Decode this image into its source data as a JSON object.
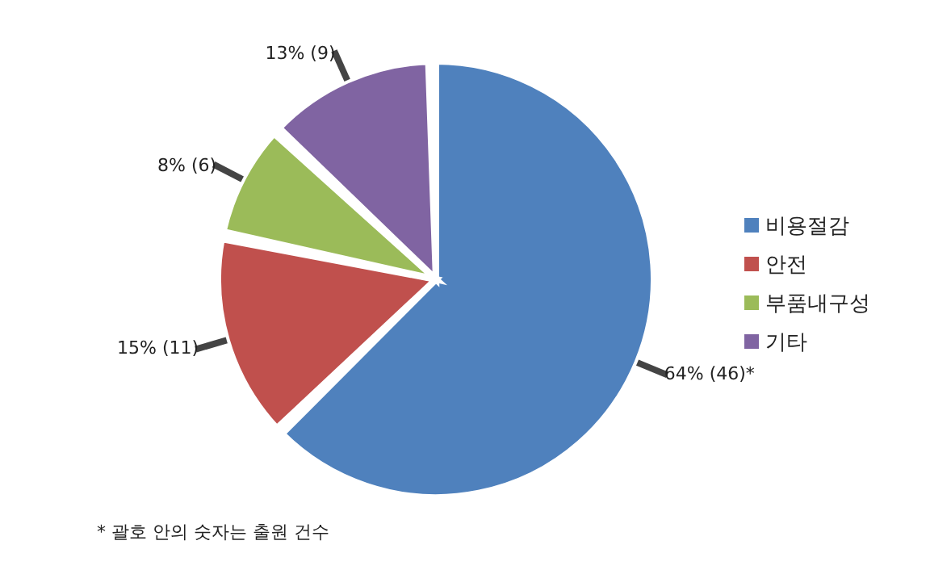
{
  "chart_data": {
    "type": "pie",
    "categories": [
      "비용절감",
      "안전",
      "부품내구성",
      "기타"
    ],
    "values": [
      46,
      11,
      6,
      9
    ],
    "value_labels": [
      "64% (46)*",
      "15% (11)",
      "8% (6)",
      "13% (9)"
    ],
    "colors": [
      "#4f81bd",
      "#c0504d",
      "#9bbb59",
      "#8064a2"
    ],
    "legend": "right",
    "annotations": [
      "* 괄호 안의 숫자는 출원 건수"
    ]
  }
}
